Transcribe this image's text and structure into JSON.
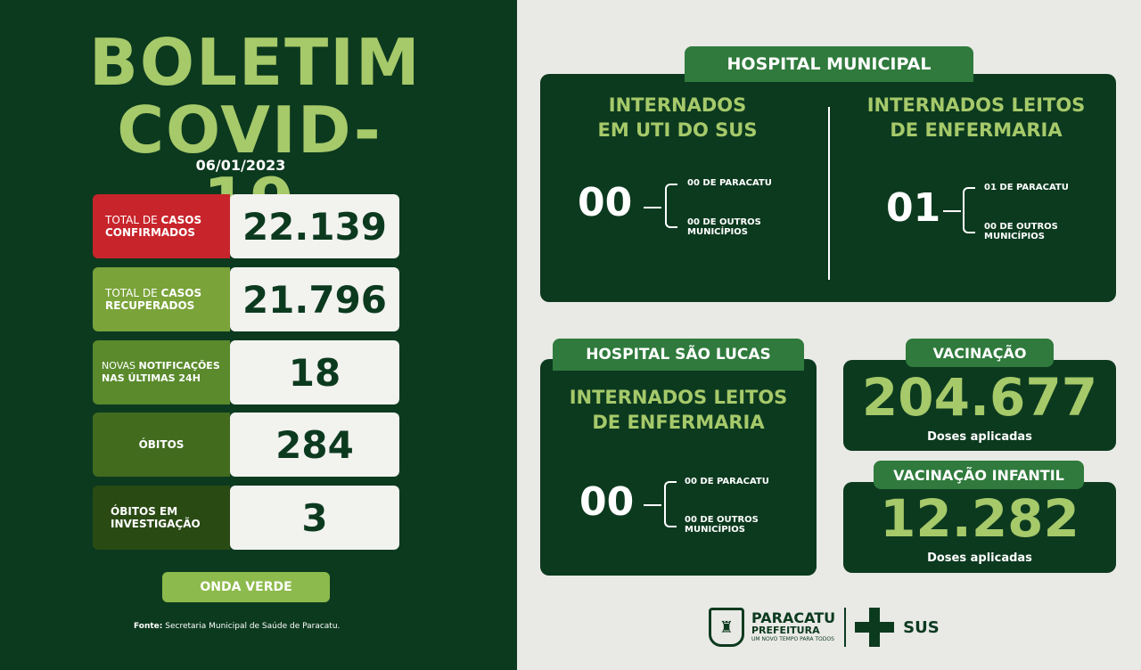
{
  "header": {
    "title_line1": "BOLETIM",
    "title_line2": "COVID-19",
    "date": "06/01/2023"
  },
  "stats": [
    {
      "label_a": "TOTAL DE ",
      "label_b": "CASOS",
      "label_c": "CONFIRMADOS",
      "value": "22.139",
      "color": "#c8242b"
    },
    {
      "label_a": "TOTAL DE ",
      "label_b": "CASOS",
      "label_c": "RECUPERADOS",
      "value": "21.796",
      "color": "#7aa33a"
    },
    {
      "label_a": "NOVAS ",
      "label_b": "NOTIFICAÇÕES",
      "label_c": "NAS ÚLTIMAS 24H",
      "value": "18",
      "color": "#5a8a2c"
    },
    {
      "label": "ÓBITOS",
      "value": "284",
      "color": "#426b1e"
    },
    {
      "label_line1": "ÓBITOS EM",
      "label_line2": "INVESTIGAÇÃO",
      "value": "3",
      "color": "#2a4a14"
    }
  ],
  "wave": "ONDA VERDE",
  "source": {
    "label": "Fonte:",
    "text": " Secretaria Municipal de Saúde de Paracatu."
  },
  "hospital_municipal": {
    "tab": "HOSPITAL MUNICIPAL",
    "uti": {
      "title_line1": "INTERNADOS",
      "title_line2": "EM UTI DO SUS",
      "total": "00",
      "paracatu": "00 DE PARACATU",
      "outros_line1": "00 DE OUTROS",
      "outros_line2": "MUNICÍPIOS"
    },
    "enfermaria": {
      "title_line1": "INTERNADOS LEITOS",
      "title_line2": "DE ENFERMARIA",
      "total": "01",
      "paracatu": "01 DE PARACATU",
      "outros_line1": "00 DE OUTROS",
      "outros_line2": "MUNICÍPIOS"
    }
  },
  "hospital_sao_lucas": {
    "tab": "HOSPITAL SÃO LUCAS",
    "title_line1": "INTERNADOS LEITOS",
    "title_line2": "DE ENFERMARIA",
    "total": "00",
    "paracatu": "00 DE PARACATU",
    "outros_line1": "00 DE OUTROS",
    "outros_line2": "MUNICÍPIOS"
  },
  "vacinacao": {
    "tab": "VACINAÇÃO",
    "value": "204.677",
    "sub": "Doses aplicadas"
  },
  "vacinacao_infantil": {
    "tab": "VACINAÇÃO INFANTIL",
    "value": "12.282",
    "sub": "Doses aplicadas"
  },
  "footer": {
    "city": "PARACATU",
    "prefeitura": "PREFEITURA",
    "slogan": "UM NOVO TEMPO PARA TODOS",
    "sus": "SUS"
  },
  "colors": {
    "dark_green": "#0c3a1f",
    "light_green": "#a6c96a",
    "tab_green": "#2f7a3c",
    "red": "#c8242b"
  }
}
